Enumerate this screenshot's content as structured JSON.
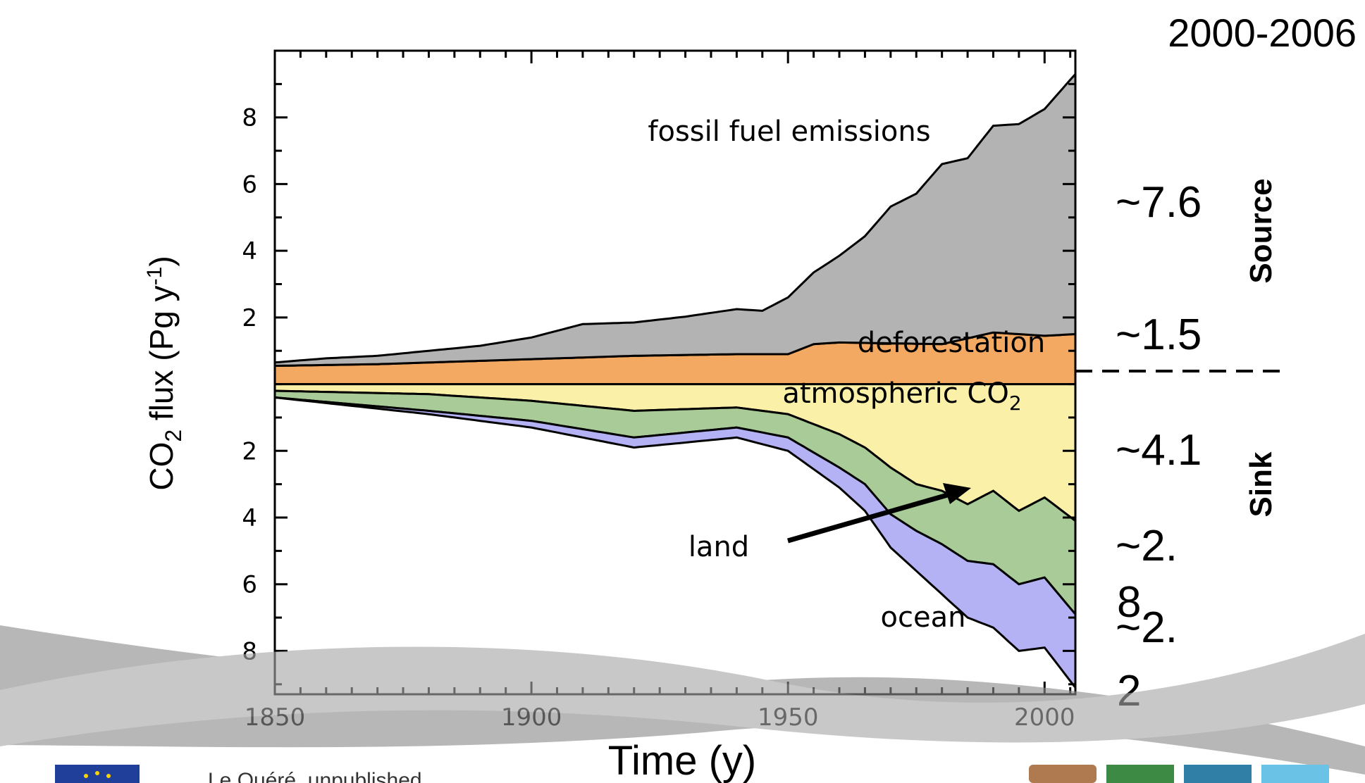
{
  "chart_data": {
    "type": "area",
    "xlabel": "Time (y)",
    "ylabel_main": "CO",
    "ylabel_sub": "2",
    "ylabel_rest": " flux (Pg y",
    "ylabel_sup": "-1",
    "ylabel_end": ")",
    "xlim": [
      1850,
      2006
    ],
    "ylim": [
      -9.3,
      10.0
    ],
    "x_ticks": [
      "1850",
      "1900",
      "1950",
      "2000"
    ],
    "y_ticks_source": [
      "2",
      "4",
      "6",
      "8"
    ],
    "y_ticks_sink": [
      "2",
      "4",
      "6",
      "8"
    ],
    "period_label": "2000-2006",
    "side_labels": {
      "source": "Source",
      "sink": "Sink"
    },
    "budget_values": {
      "fossil": "~7.6",
      "deforestation": "~1.5",
      "atmospheric": "~4.1",
      "land_a": "~2.",
      "land_b": "8",
      "ocean_a": "~2.",
      "ocean_b": "2"
    },
    "annotations": {
      "fossil": "fossil fuel emissions",
      "deforestation": "deforestation",
      "atmospheric": "atmospheric CO",
      "atmospheric_sub": "2",
      "land": "land",
      "ocean": "ocean"
    },
    "series": [
      {
        "name": "fossil fuel emissions",
        "color": "#b3b3b3",
        "x": [
          1850,
          1860,
          1870,
          1880,
          1890,
          1900,
          1910,
          1920,
          1930,
          1940,
          1945,
          1950,
          1960,
          1965,
          1970,
          1975,
          1980,
          1985,
          1990,
          1995,
          2000,
          2006
        ],
        "values": [
          0.1,
          0.2,
          0.25,
          0.35,
          0.45,
          0.65,
          1.0,
          1.0,
          1.15,
          1.35,
          1.3,
          1.7,
          2.6,
          3.2,
          4.1,
          4.5,
          5.4,
          5.4,
          6.2,
          6.3,
          6.8,
          7.8
        ]
      },
      {
        "name": "deforestation",
        "color": "#f3a962",
        "x": [
          1850,
          1870,
          1900,
          1920,
          1940,
          1950,
          1955,
          1960,
          1980,
          1990,
          2000,
          2006
        ],
        "values": [
          0.55,
          0.6,
          0.75,
          0.85,
          0.9,
          0.9,
          1.2,
          1.25,
          1.2,
          1.55,
          1.45,
          1.5
        ]
      },
      {
        "name": "atmospheric CO2",
        "color": "#fbf0a8",
        "x": [
          1850,
          1880,
          1900,
          1920,
          1940,
          1950,
          1960,
          1965,
          1970,
          1975,
          1980,
          1985,
          1990,
          1995,
          2000,
          2006
        ],
        "values": [
          0.2,
          0.3,
          0.5,
          0.8,
          0.7,
          0.9,
          1.5,
          1.9,
          2.5,
          3.0,
          3.2,
          3.6,
          3.2,
          3.8,
          3.4,
          4.1
        ]
      },
      {
        "name": "land",
        "color": "#a9cb97",
        "x": [
          1850,
          1880,
          1900,
          1920,
          1940,
          1950,
          1960,
          1965,
          1970,
          1975,
          1980,
          1985,
          1990,
          1995,
          2000,
          2006
        ],
        "values": [
          0.2,
          0.5,
          0.6,
          0.8,
          0.6,
          0.7,
          1.0,
          1.1,
          1.4,
          1.4,
          1.6,
          1.7,
          2.2,
          2.2,
          2.4,
          2.8
        ]
      },
      {
        "name": "ocean",
        "color": "#b4b2f5",
        "x": [
          1850,
          1880,
          1900,
          1920,
          1940,
          1950,
          1960,
          1965,
          1970,
          1975,
          1980,
          1985,
          1990,
          1995,
          2000,
          2006
        ],
        "values": [
          0.0,
          0.1,
          0.2,
          0.3,
          0.3,
          0.4,
          0.6,
          0.8,
          1.0,
          1.2,
          1.5,
          1.7,
          1.9,
          2.0,
          2.1,
          2.2
        ]
      }
    ]
  },
  "footer": {
    "citation": "Le Quéré, unpublished"
  }
}
